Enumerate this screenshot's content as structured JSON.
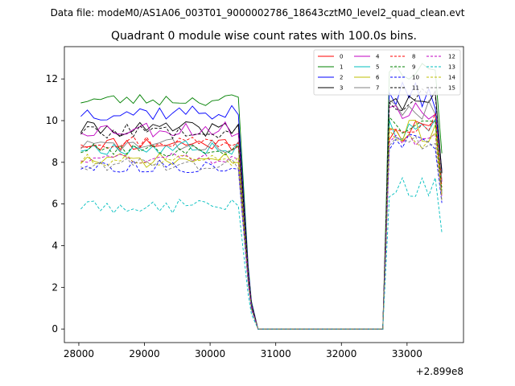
{
  "figure": {
    "supertitle": "Data file: modeM0/AS1A06_003T01_9000002786_18643cztM0_level2_quad_clean.evt",
    "title": "Quadrant 0 module wise count rates with 100.0s bins.",
    "x_offset_label": "+2.899e8"
  },
  "chart_data": {
    "type": "line",
    "title": "Quadrant 0 module wise count rates with 100.0s bins.",
    "xlabel": "",
    "ylabel": "",
    "x_offset": 289900000,
    "xlim": [
      27780,
      33860
    ],
    "ylim": [
      -0.65,
      13.55
    ],
    "xticks": [
      28000,
      29000,
      30000,
      31000,
      32000,
      33000
    ],
    "xtick_labels": [
      "28000",
      "29000",
      "30000",
      "31000",
      "32000",
      "33000"
    ],
    "yticks": [
      0,
      2,
      4,
      6,
      8,
      10,
      12
    ],
    "ytick_labels": [
      "0",
      "2",
      "4",
      "6",
      "8",
      "10",
      "12"
    ],
    "legend_position": "upper right",
    "legend_columns": 4,
    "segments": {
      "first_start": 28030,
      "first_end": 30480,
      "gap_start": 30730,
      "gap_end": 32630,
      "second_start": 32730,
      "second_end": 33530,
      "step": 100
    },
    "series": [
      {
        "name": "0",
        "color": "#ff0000",
        "dash": "solid",
        "level1": 8.9,
        "level2": 9.5,
        "jitter": 0.35,
        "seed": 11
      },
      {
        "name": "1",
        "color": "#008000",
        "dash": "solid",
        "level1": 11.0,
        "level2": 12.4,
        "jitter": 0.3,
        "seed": 23
      },
      {
        "name": "2",
        "color": "#0000ff",
        "dash": "solid",
        "level1": 10.4,
        "level2": 11.2,
        "jitter": 0.4,
        "seed": 37
      },
      {
        "name": "3",
        "color": "#000000",
        "dash": "solid",
        "level1": 9.6,
        "level2": 11.0,
        "jitter": 0.35,
        "seed": 41
      },
      {
        "name": "4",
        "color": "#c000c0",
        "dash": "solid",
        "level1": 9.6,
        "level2": 10.4,
        "jitter": 0.4,
        "seed": 53
      },
      {
        "name": "5",
        "color": "#00bfbf",
        "dash": "solid",
        "level1": 8.7,
        "level2": 9.6,
        "jitter": 0.35,
        "seed": 67
      },
      {
        "name": "6",
        "color": "#bfbf00",
        "dash": "solid",
        "level1": 8.1,
        "level2": 9.5,
        "jitter": 0.35,
        "seed": 71
      },
      {
        "name": "7",
        "color": "#808080",
        "dash": "solid",
        "level1": 8.8,
        "level2": 10.5,
        "jitter": 0.35,
        "seed": 83
      },
      {
        "name": "8",
        "color": "#ff0000",
        "dash": "dashed",
        "level1": 9.0,
        "level2": 10.0,
        "jitter": 0.35,
        "seed": 97
      },
      {
        "name": "9",
        "color": "#008000",
        "dash": "dashed",
        "level1": 8.6,
        "level2": 9.8,
        "jitter": 0.3,
        "seed": 101
      },
      {
        "name": "10",
        "color": "#0000ff",
        "dash": "dashed",
        "level1": 7.8,
        "level2": 8.9,
        "jitter": 0.3,
        "seed": 113
      },
      {
        "name": "11",
        "color": "#000000",
        "dash": "dashed",
        "level1": 9.5,
        "level2": 11.0,
        "jitter": 0.35,
        "seed": 127
      },
      {
        "name": "12",
        "color": "#c000c0",
        "dash": "dashed",
        "level1": 8.2,
        "level2": 9.3,
        "jitter": 0.3,
        "seed": 131
      },
      {
        "name": "13",
        "color": "#00bfbf",
        "dash": "dashed",
        "level1": 5.9,
        "level2": 6.8,
        "jitter": 0.35,
        "seed": 149
      },
      {
        "name": "14",
        "color": "#bfbf00",
        "dash": "dashed",
        "level1": 8.1,
        "level2": 9.1,
        "jitter": 0.3,
        "seed": 151
      },
      {
        "name": "15",
        "color": "#808080",
        "dash": "dashed",
        "level1": 7.9,
        "level2": 9.0,
        "jitter": 0.3,
        "seed": 163
      }
    ]
  }
}
